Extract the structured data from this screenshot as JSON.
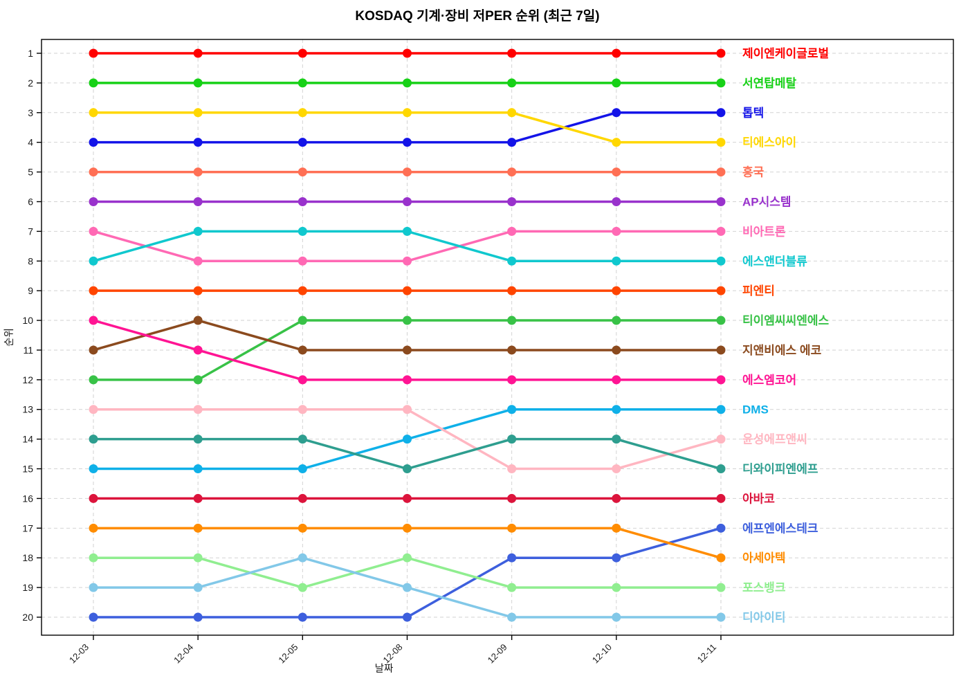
{
  "header": {
    "title": "KOSDAQ 기계·장비 저PER 순위 (최근 7일)"
  },
  "chart_data": {
    "type": "line",
    "subtype": "bump-rank-chart",
    "title": "KOSDAQ 기계·장비 저PER 순위 (최근 7일)",
    "xlabel": "날짜",
    "ylabel": "순위",
    "x": [
      "12-03",
      "12-04",
      "12-05",
      "12-08",
      "12-09",
      "12-10",
      "12-11"
    ],
    "ylim": [
      1,
      20
    ],
    "y_inverted": true,
    "grid": true,
    "legend_position": "right-inline-labels",
    "series": [
      {
        "name": "제이엔케이글로벌",
        "color": "#ff0000",
        "ranks": [
          1,
          1,
          1,
          1,
          1,
          1,
          1
        ]
      },
      {
        "name": "서연탑메탈",
        "color": "#17d117",
        "ranks": [
          2,
          2,
          2,
          2,
          2,
          2,
          2
        ]
      },
      {
        "name": "톱텍",
        "color": "#1414e8",
        "ranks": [
          4,
          4,
          4,
          4,
          4,
          3,
          3
        ]
      },
      {
        "name": "티에스아이",
        "color": "#ffd700",
        "ranks": [
          3,
          3,
          3,
          3,
          3,
          4,
          4
        ]
      },
      {
        "name": "흥국",
        "color": "#ff6f54",
        "ranks": [
          5,
          5,
          5,
          5,
          5,
          5,
          5
        ]
      },
      {
        "name": "AP시스템",
        "color": "#9932cc",
        "ranks": [
          6,
          6,
          6,
          6,
          6,
          6,
          6
        ]
      },
      {
        "name": "비아트론",
        "color": "#ff69b4",
        "ranks": [
          7,
          8,
          8,
          8,
          7,
          7,
          7
        ]
      },
      {
        "name": "에스앤더블류",
        "color": "#10c8ce",
        "ranks": [
          8,
          7,
          7,
          7,
          8,
          8,
          8
        ]
      },
      {
        "name": "피엔티",
        "color": "#ff4500",
        "ranks": [
          9,
          9,
          9,
          9,
          9,
          9,
          9
        ]
      },
      {
        "name": "티이엠씨씨엔에스",
        "color": "#38c247",
        "ranks": [
          12,
          12,
          10,
          10,
          10,
          10,
          10
        ]
      },
      {
        "name": "지앤비에스 에코",
        "color": "#8b4a1e",
        "ranks": [
          11,
          10,
          11,
          11,
          11,
          11,
          11
        ]
      },
      {
        "name": "에스엠코어",
        "color": "#ff1493",
        "ranks": [
          10,
          11,
          12,
          12,
          12,
          12,
          12
        ]
      },
      {
        "name": "DMS",
        "color": "#0fb0e8",
        "ranks": [
          15,
          15,
          15,
          14,
          13,
          13,
          13
        ]
      },
      {
        "name": "윤성에프앤씨",
        "color": "#ffb6c1",
        "ranks": [
          13,
          13,
          13,
          13,
          15,
          15,
          14
        ]
      },
      {
        "name": "디와이피엔에프",
        "color": "#2e9e8f",
        "ranks": [
          14,
          14,
          14,
          15,
          14,
          14,
          15
        ]
      },
      {
        "name": "아바코",
        "color": "#dc143c",
        "ranks": [
          16,
          16,
          16,
          16,
          16,
          16,
          16
        ]
      },
      {
        "name": "에프엔에스테크",
        "color": "#3d5fdd",
        "ranks": [
          20,
          20,
          20,
          20,
          18,
          18,
          17
        ]
      },
      {
        "name": "아세아텍",
        "color": "#ff8c00",
        "ranks": [
          17,
          17,
          17,
          17,
          17,
          17,
          18
        ]
      },
      {
        "name": "포스뱅크",
        "color": "#90ee90",
        "ranks": [
          18,
          18,
          19,
          18,
          19,
          19,
          19
        ]
      },
      {
        "name": "디아이티",
        "color": "#82c8e8",
        "ranks": [
          19,
          19,
          18,
          19,
          20,
          20,
          20
        ]
      }
    ]
  },
  "style_colors": {
    "grid": "#d2d2d2",
    "spine": "#000000",
    "tick_label": "#1a1a1a",
    "background": "#ffffff"
  }
}
